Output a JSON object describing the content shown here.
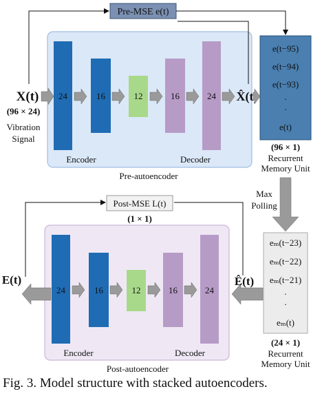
{
  "pre": {
    "mse_label": "Pre-MSE e(t)",
    "input_symbol": "X(t)",
    "input_dim": "(96 × 24)",
    "input_desc_1": "Vibration",
    "input_desc_2": "Signal",
    "output_symbol": "X̂(t)",
    "layers": [
      "24",
      "16",
      "12",
      "16",
      "24"
    ],
    "encoder_label": "Encoder",
    "decoder_label": "Decoder",
    "title": "Pre-autoencoder"
  },
  "memory1": {
    "items": [
      "e(t−95)",
      "e(t−94)",
      "e(t−93)",
      ".",
      ".",
      "e(t)"
    ],
    "dim": "(96 × 1)",
    "label_1": "Recurrent",
    "label_2": "Memory Unit"
  },
  "pooling": {
    "label_1": "Max",
    "label_2": "Polling"
  },
  "memory2": {
    "items": [
      "eₘ(t−23)",
      "eₘ(t−22)",
      "eₘ(t−21)",
      ".",
      ".",
      "eₘ(t)"
    ],
    "dim": "(24 × 1)",
    "label_1": "Recurrent",
    "label_2": "Memory Unit"
  },
  "post": {
    "mse_label": "Post-MSE  L(t)",
    "mse_dim": "(1 × 1)",
    "input_symbol": "Ê(t)",
    "output_symbol": "E(t)",
    "layers": [
      "24",
      "16",
      "12",
      "16",
      "24"
    ],
    "encoder_label": "Encoder",
    "decoder_label": "Decoder",
    "title": "Post-autoencoder"
  },
  "caption": "Fig. 3.  Model structure with stacked autoencoders.",
  "colors": {
    "dark_blue": "#1f6cb5",
    "green": "#a8d98a",
    "purple": "#b79bc7",
    "pre_bg": "#dbe8f7",
    "post_bg": "#efe8f4",
    "memory_bg": "#4a7fb0",
    "pre_mse_bg": "#7b90b2",
    "arrow_gray": "#9a9a9a"
  }
}
